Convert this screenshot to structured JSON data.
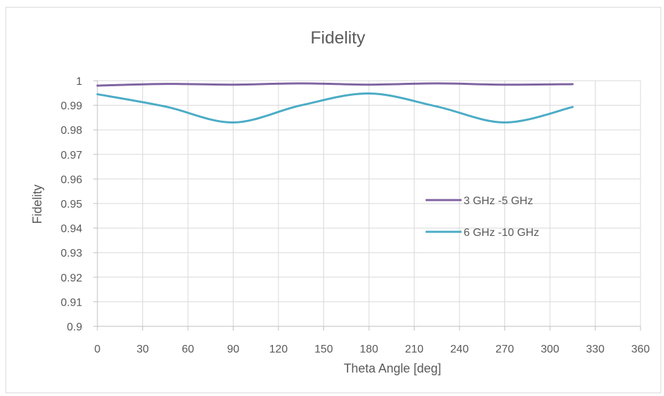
{
  "chart_data": {
    "type": "line",
    "title": "Fidelity",
    "xlabel": "Theta Angle [deg]",
    "ylabel": "Fidelity",
    "xlim": [
      0,
      360
    ],
    "ylim": [
      0.9,
      1.0
    ],
    "x_ticks": [
      "0",
      "30",
      "60",
      "90",
      "120",
      "150",
      "180",
      "210",
      "240",
      "270",
      "300",
      "330",
      "360"
    ],
    "y_ticks": [
      "1",
      "0.99",
      "0.98",
      "0.97",
      "0.96",
      "0.95",
      "0.94",
      "0.93",
      "0.92",
      "0.91",
      "0.9"
    ],
    "x_tick_values": [
      0,
      30,
      60,
      90,
      120,
      150,
      180,
      210,
      240,
      270,
      300,
      330,
      360
    ],
    "y_tick_values": [
      1.0,
      0.99,
      0.98,
      0.97,
      0.96,
      0.95,
      0.94,
      0.93,
      0.92,
      0.91,
      0.9
    ],
    "grid": true,
    "legend_position": "right-middle",
    "smooth": true,
    "series": [
      {
        "name": "3 GHz -5 GHz",
        "color": "#8064a2",
        "x": [
          0,
          45,
          90,
          135,
          180,
          225,
          270,
          315
        ],
        "y": [
          0.998,
          0.9987,
          0.9984,
          0.9989,
          0.9984,
          0.9989,
          0.9984,
          0.9986
        ]
      },
      {
        "name": "6 GHz -10 GHz",
        "color": "#4bacc6",
        "x": [
          0,
          45,
          90,
          135,
          180,
          225,
          270,
          315
        ],
        "y": [
          0.9945,
          0.9895,
          0.983,
          0.99,
          0.9948,
          0.9895,
          0.983,
          0.9893
        ]
      }
    ]
  }
}
